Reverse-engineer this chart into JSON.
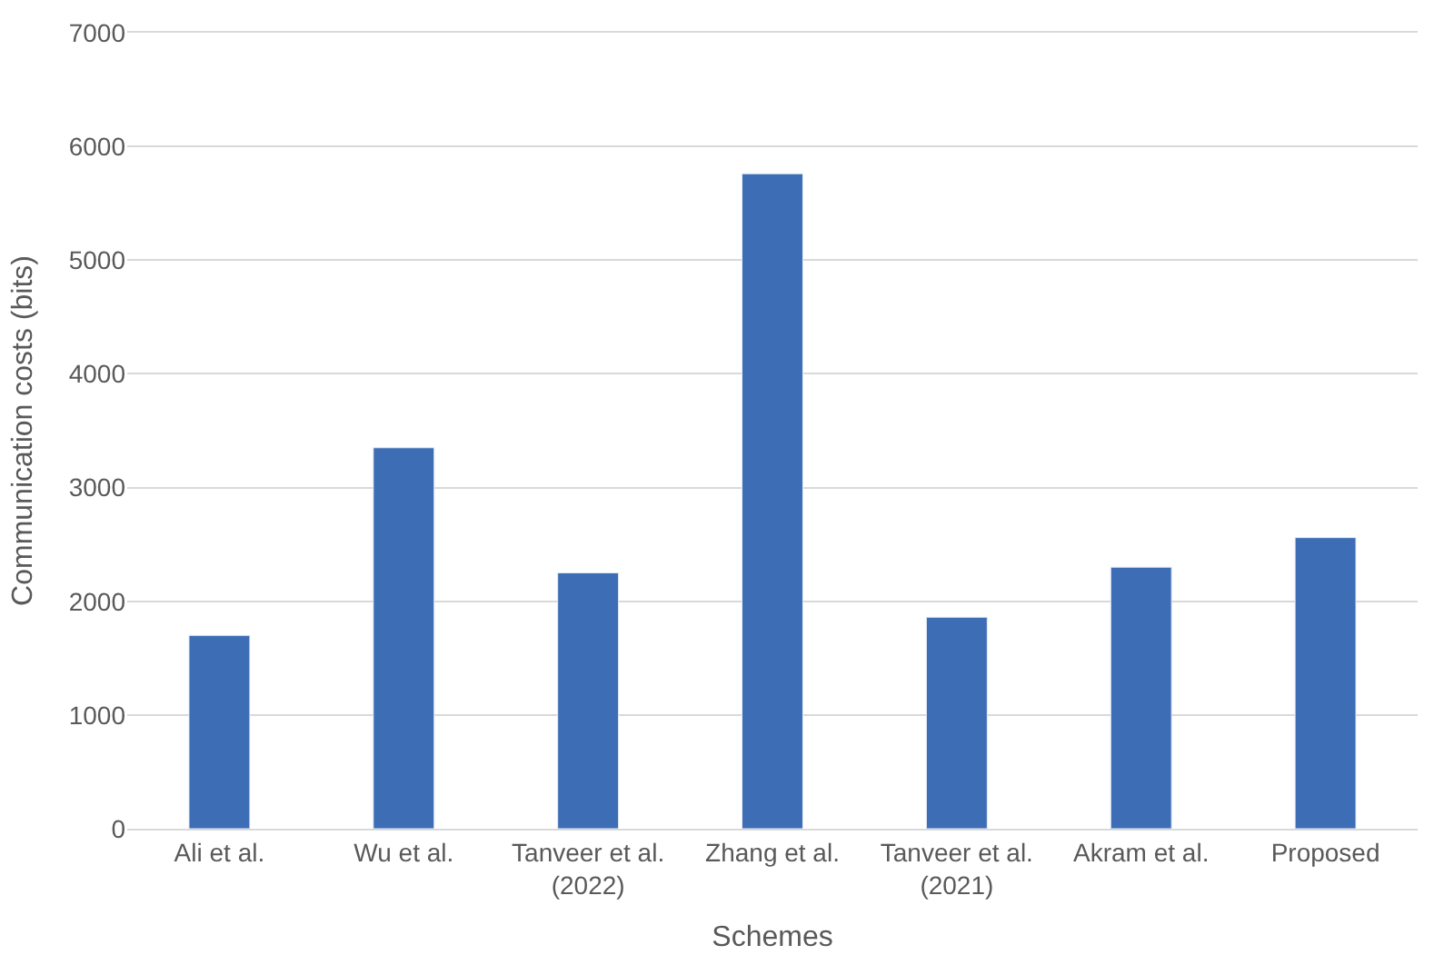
{
  "chart_data": {
    "type": "bar",
    "xlabel": "Schemes",
    "ylabel": "Communication costs (bits)",
    "categories": [
      "Ali et al.",
      "Wu et al.",
      "Tanveer et al.\n(2022)",
      "Zhang et al.",
      "Tanveer et al.\n(2021)",
      "Akram et al.",
      "Proposed"
    ],
    "values": [
      1700,
      3350,
      2250,
      5760,
      1860,
      2300,
      2560
    ],
    "color": "#3d6db5",
    "ylim": [
      0,
      7000
    ],
    "yticks": [
      0,
      1000,
      2000,
      3000,
      4000,
      5000,
      6000,
      7000
    ],
    "grid": "y"
  }
}
